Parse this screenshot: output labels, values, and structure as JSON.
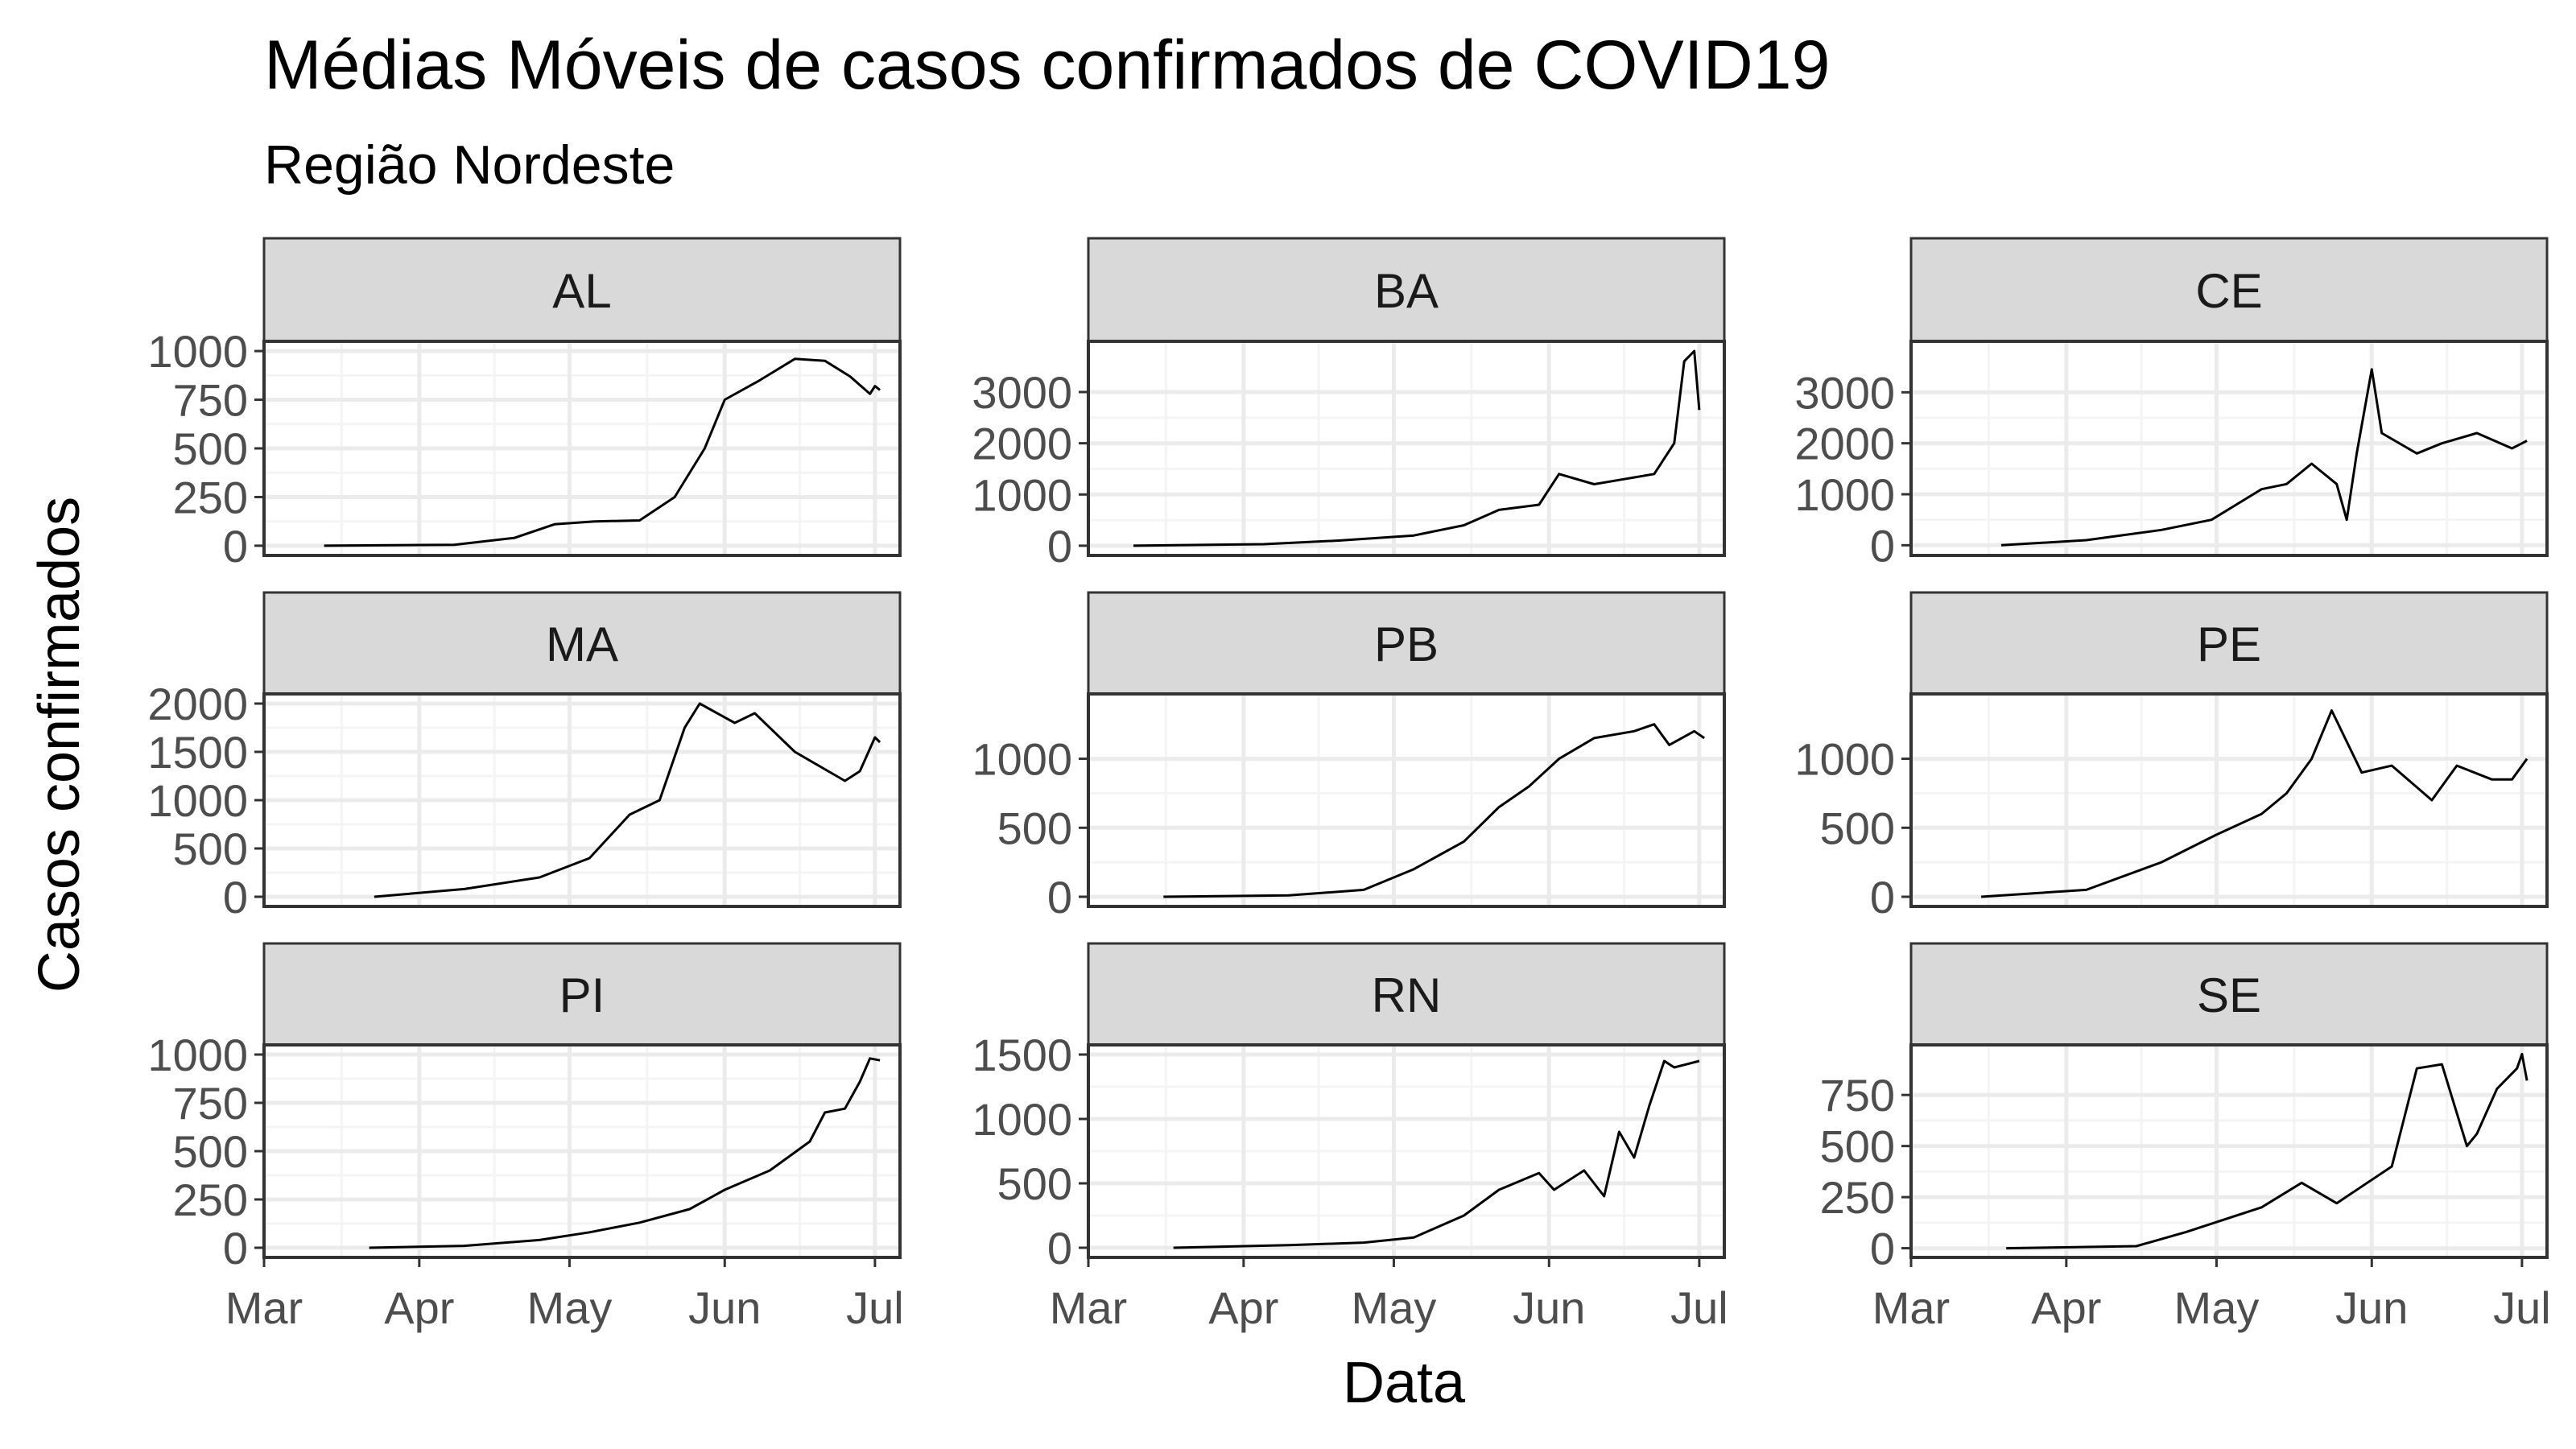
{
  "chart_data": {
    "type": "line",
    "title": "Médias Móveis de casos confirmados de COVID19",
    "subtitle": "Região Nordeste",
    "xlabel": "Data",
    "ylabel": "Casos confirmados",
    "x_type": "date",
    "xlim": [
      "2020-03-01",
      "2020-07-06"
    ],
    "x_ticks": [
      {
        "label": "Mar",
        "date": "2020-03-01"
      },
      {
        "label": "Apr",
        "date": "2020-04-01"
      },
      {
        "label": "May",
        "date": "2020-05-01"
      },
      {
        "label": "Jun",
        "date": "2020-06-01"
      },
      {
        "label": "Jul",
        "date": "2020-07-01"
      }
    ],
    "grid": true,
    "colors": {
      "line": "#000000",
      "strip": "#d9d9d9",
      "border": "#333333",
      "grid_major": "#ebebeb",
      "grid_minor": "#f4f4f4"
    },
    "panels": [
      {
        "name": "AL",
        "ylim": [
          -50,
          1050
        ],
        "yticks": [
          0,
          250,
          500,
          750,
          1000
        ],
        "series": [
          {
            "x": [
              "2020-03-13",
              "2020-04-08",
              "2020-04-20",
              "2020-04-28",
              "2020-05-06",
              "2020-05-15",
              "2020-05-22",
              "2020-05-28",
              "2020-06-01",
              "2020-06-08",
              "2020-06-15",
              "2020-06-21",
              "2020-06-26",
              "2020-06-30",
              "2020-07-01",
              "2020-07-02"
            ],
            "y": [
              0,
              5,
              40,
              110,
              125,
              130,
              250,
              500,
              750,
              850,
              960,
              950,
              870,
              780,
              820,
              800
            ]
          }
        ]
      },
      {
        "name": "BA",
        "ylim": [
          -190,
          3990
        ],
        "yticks": [
          0,
          1000,
          2000,
          3000
        ],
        "series": [
          {
            "x": [
              "2020-03-10",
              "2020-04-05",
              "2020-04-20",
              "2020-05-05",
              "2020-05-15",
              "2020-05-22",
              "2020-05-30",
              "2020-06-03",
              "2020-06-10",
              "2020-06-16",
              "2020-06-22",
              "2020-06-26",
              "2020-06-28",
              "2020-06-30",
              "2020-07-01"
            ],
            "y": [
              0,
              30,
              100,
              200,
              400,
              700,
              800,
              1400,
              1200,
              1300,
              1400,
              2000,
              3600,
              3800,
              2650
            ]
          }
        ]
      },
      {
        "name": "CE",
        "ylim": [
          -200,
          4000
        ],
        "yticks": [
          0,
          1000,
          2000,
          3000
        ],
        "series": [
          {
            "x": [
              "2020-03-19",
              "2020-04-05",
              "2020-04-20",
              "2020-04-30",
              "2020-05-10",
              "2020-05-15",
              "2020-05-20",
              "2020-05-25",
              "2020-05-27",
              "2020-05-29",
              "2020-06-01",
              "2020-06-03",
              "2020-06-10",
              "2020-06-15",
              "2020-06-22",
              "2020-06-29",
              "2020-07-01",
              "2020-07-02"
            ],
            "y": [
              0,
              100,
              300,
              500,
              1100,
              1200,
              1600,
              1200,
              500,
              1800,
              3450,
              2200,
              1800,
              2000,
              2200,
              1900,
              2000,
              2050
            ]
          }
        ]
      },
      {
        "name": "MA",
        "ylim": [
          -100,
          2100
        ],
        "yticks": [
          0,
          500,
          1000,
          1500,
          2000
        ],
        "series": [
          {
            "x": [
              "2020-03-23",
              "2020-04-10",
              "2020-04-25",
              "2020-05-05",
              "2020-05-13",
              "2020-05-19",
              "2020-05-24",
              "2020-05-27",
              "2020-06-03",
              "2020-06-07",
              "2020-06-15",
              "2020-06-20",
              "2020-06-25",
              "2020-06-28",
              "2020-07-01",
              "2020-07-02"
            ],
            "y": [
              0,
              80,
              200,
              400,
              850,
              1000,
              1750,
              2000,
              1800,
              1900,
              1500,
              1350,
              1200,
              1300,
              1650,
              1600
            ]
          }
        ]
      },
      {
        "name": "PB",
        "ylim": [
          -70,
          1470
        ],
        "yticks": [
          0,
          500,
          1000
        ],
        "series": [
          {
            "x": [
              "2020-03-16",
              "2020-04-10",
              "2020-04-25",
              "2020-05-05",
              "2020-05-15",
              "2020-05-22",
              "2020-05-28",
              "2020-06-03",
              "2020-06-10",
              "2020-06-18",
              "2020-06-22",
              "2020-06-25",
              "2020-06-30",
              "2020-07-02"
            ],
            "y": [
              0,
              10,
              50,
              200,
              400,
              650,
              800,
              1000,
              1150,
              1200,
              1250,
              1100,
              1200,
              1150
            ]
          }
        ]
      },
      {
        "name": "PE",
        "ylim": [
          -70,
          1470
        ],
        "yticks": [
          0,
          500,
          1000
        ],
        "series": [
          {
            "x": [
              "2020-03-15",
              "2020-04-05",
              "2020-04-20",
              "2020-05-01",
              "2020-05-10",
              "2020-05-15",
              "2020-05-20",
              "2020-05-24",
              "2020-05-30",
              "2020-06-05",
              "2020-06-13",
              "2020-06-18",
              "2020-06-25",
              "2020-06-29",
              "2020-07-02"
            ],
            "y": [
              0,
              50,
              250,
              450,
              600,
              750,
              1000,
              1350,
              900,
              950,
              700,
              950,
              850,
              850,
              1000
            ]
          }
        ]
      },
      {
        "name": "PI",
        "ylim": [
          -50,
          1050
        ],
        "yticks": [
          0,
          250,
          500,
          750,
          1000
        ],
        "series": [
          {
            "x": [
              "2020-03-22",
              "2020-04-10",
              "2020-04-25",
              "2020-05-05",
              "2020-05-15",
              "2020-05-25",
              "2020-06-01",
              "2020-06-10",
              "2020-06-18",
              "2020-06-21",
              "2020-06-25",
              "2020-06-28",
              "2020-06-30",
              "2020-07-02"
            ],
            "y": [
              0,
              10,
              40,
              80,
              130,
              200,
              300,
              400,
              550,
              700,
              720,
              860,
              980,
              970
            ]
          }
        ]
      },
      {
        "name": "RN",
        "ylim": [
          -75,
          1575
        ],
        "yticks": [
          0,
          500,
          1000,
          1500
        ],
        "series": [
          {
            "x": [
              "2020-03-18",
              "2020-04-10",
              "2020-04-25",
              "2020-05-05",
              "2020-05-15",
              "2020-05-22",
              "2020-05-30",
              "2020-06-02",
              "2020-06-08",
              "2020-06-12",
              "2020-06-15",
              "2020-06-18",
              "2020-06-21",
              "2020-06-24",
              "2020-06-26",
              "2020-06-28",
              "2020-07-01"
            ],
            "y": [
              0,
              20,
              40,
              80,
              250,
              450,
              580,
              450,
              600,
              400,
              900,
              700,
              1100,
              1450,
              1400,
              1420,
              1450
            ]
          }
        ]
      },
      {
        "name": "SE",
        "ylim": [
          -45,
          995
        ],
        "yticks": [
          0,
          250,
          500,
          750
        ],
        "series": [
          {
            "x": [
              "2020-03-20",
              "2020-04-15",
              "2020-04-25",
              "2020-05-10",
              "2020-05-18",
              "2020-05-25",
              "2020-06-05",
              "2020-06-10",
              "2020-06-15",
              "2020-06-20",
              "2020-06-22",
              "2020-06-26",
              "2020-06-30",
              "2020-07-01",
              "2020-07-02"
            ],
            "y": [
              0,
              10,
              80,
              200,
              320,
              220,
              400,
              880,
              900,
              500,
              560,
              780,
              880,
              950,
              820
            ]
          }
        ]
      }
    ]
  }
}
